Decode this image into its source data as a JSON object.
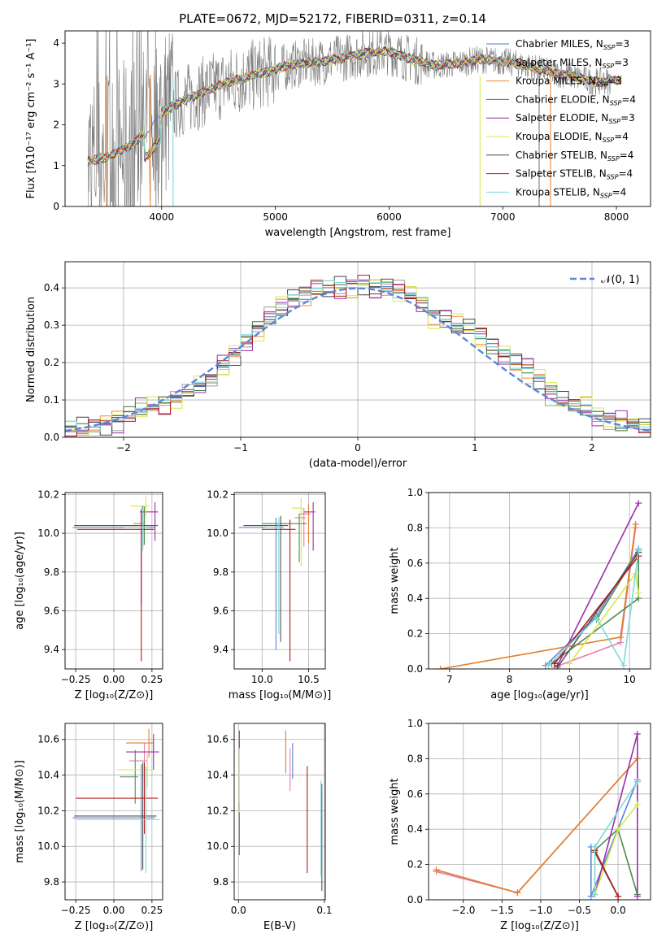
{
  "chart_data": [
    {
      "type": "line",
      "title": "PLATE=0672, MJD=52172, FIBERID=0311, z=0.14",
      "xlabel": "wavelength [Angstrom, rest frame]",
      "ylabel": "Flux [fλ10⁻¹⁷ erg cm⁻² s⁻¹ A⁻¹]",
      "xlim": [
        3150,
        8300
      ],
      "ylim": [
        0,
        4.3
      ],
      "xticks": [
        "4000",
        "5000",
        "6000",
        "7000",
        "8000"
      ],
      "yticks": [
        "0",
        "1",
        "2",
        "3",
        "4"
      ],
      "legend_position": "top-right",
      "continuum_x": [
        3350,
        3500,
        3700,
        3900,
        4000,
        4200,
        4400,
        4600,
        4800,
        5000,
        5200,
        5400,
        5600,
        5800,
        6000,
        6200,
        6400,
        6600,
        6800,
        7000,
        7200,
        7400,
        7600,
        7800,
        8050
      ],
      "continuum_y": [
        1.1,
        1.2,
        1.45,
        1.9,
        2.3,
        2.6,
        2.85,
        3.05,
        3.2,
        3.35,
        3.5,
        3.55,
        3.65,
        3.75,
        3.8,
        3.6,
        3.45,
        3.5,
        3.6,
        3.55,
        3.45,
        3.3,
        3.2,
        3.05,
        3.1
      ],
      "series": [
        {
          "name": "Chabrier MILES, N",
          "sub": "SSP",
          "suffix": "=3",
          "color": "#4a78c4",
          "width": 1
        },
        {
          "name": "Salpeter MILES, N",
          "sub": "SSP",
          "suffix": "=3",
          "color": "#9b9b9b",
          "width": 1
        },
        {
          "name": "Kroupa MILES, N",
          "sub": "SSP",
          "suffix": "=3",
          "color": "#ee8833",
          "width": 1
        },
        {
          "name": "Chabrier ELODIE, N",
          "sub": "SSP",
          "suffix": "=4",
          "color": "#3a7a3a",
          "width": 0.8
        },
        {
          "name": "Salpeter ELODIE, N",
          "sub": "SSP",
          "suffix": "=3",
          "color": "#9a2fa8",
          "width": 1
        },
        {
          "name": "Kroupa ELODIE, N",
          "sub": "SSP",
          "suffix": "=4",
          "color": "#d8e84a",
          "width": 1
        },
        {
          "name": "Chabrier STELIB, N",
          "sub": "SSP",
          "suffix": "=4",
          "color": "#444444",
          "width": 0.8
        },
        {
          "name": "Salpeter STELIB, N",
          "sub": "SSP",
          "suffix": "=4",
          "color": "#b31b1b",
          "width": 1
        },
        {
          "name": "Kroupa STELIB, N",
          "sub": "SSP",
          "suffix": "=4",
          "color": "#7fd8d8",
          "width": 1
        }
      ]
    },
    {
      "type": "histogram",
      "xlabel": "(data-model)/error",
      "ylabel": "Normed distribution",
      "xlim": [
        -2.5,
        2.5
      ],
      "ylim": [
        0,
        0.47
      ],
      "xticks": [
        "−2",
        "−1",
        "0",
        "1",
        "2"
      ],
      "yticks": [
        "0.0",
        "0.1",
        "0.2",
        "0.3",
        "0.4"
      ],
      "bin_edges": [
        -2.5,
        -2.4,
        -2.3,
        -2.2,
        -2.1,
        -2.0,
        -1.9,
        -1.8,
        -1.7,
        -1.6,
        -1.5,
        -1.4,
        -1.3,
        -1.2,
        -1.1,
        -1.0,
        -0.9,
        -0.8,
        -0.7,
        -0.6,
        -0.5,
        -0.4,
        -0.3,
        -0.2,
        -0.1,
        0.0,
        0.1,
        0.2,
        0.3,
        0.4,
        0.5,
        0.6,
        0.7,
        0.8,
        0.9,
        1.0,
        1.1,
        1.2,
        1.3,
        1.4,
        1.5,
        1.6,
        1.7,
        1.8,
        1.9,
        2.0,
        2.1,
        2.2,
        2.3,
        2.4,
        2.5
      ],
      "base_values": [
        0.02,
        0.025,
        0.03,
        0.04,
        0.05,
        0.06,
        0.07,
        0.08,
        0.09,
        0.1,
        0.12,
        0.14,
        0.16,
        0.19,
        0.22,
        0.26,
        0.29,
        0.32,
        0.35,
        0.37,
        0.38,
        0.39,
        0.4,
        0.4,
        0.4,
        0.41,
        0.4,
        0.4,
        0.39,
        0.38,
        0.36,
        0.33,
        0.31,
        0.3,
        0.29,
        0.27,
        0.24,
        0.22,
        0.2,
        0.18,
        0.15,
        0.12,
        0.1,
        0.09,
        0.08,
        0.06,
        0.05,
        0.04,
        0.035,
        0.03
      ],
      "gaussian_label": "𝒩(0, 1)",
      "gaussian_color": "#5b86d6"
    },
    {
      "type": "scatter",
      "panel": "age-vs-Z",
      "xlabel": "Z [log₁₀(Z/Z⊙)]",
      "ylabel": "age  [log₁₀(age/yr)]",
      "xlim": [
        -0.32,
        0.32
      ],
      "ylim": [
        9.3,
        10.21
      ],
      "xticks": [
        "−0.25",
        "0.00",
        "0.25"
      ],
      "yticks": [
        "9.4",
        "9.6",
        "9.8",
        "10.0",
        "10.2"
      ],
      "x": [
        0.18,
        0.18,
        0.19,
        0.2,
        0.27,
        0.21,
        0.19,
        0.18,
        0.19
      ],
      "y": [
        10.03,
        10.03,
        10.05,
        10.04,
        10.11,
        10.14,
        10.04,
        10.02,
        10.03
      ],
      "xerr": [
        0.45,
        0.08,
        0.06,
        0.45,
        0.1,
        0.1,
        0.45,
        0.42,
        0.12
      ],
      "yerr_low": [
        0.4,
        0.06,
        0.12,
        0.1,
        0.15,
        0.06,
        0.1,
        0.68,
        0.12
      ],
      "yerr_high": [
        0.1,
        0.08,
        0.08,
        0.1,
        0.05,
        0.05,
        0.1,
        0.1,
        0.1
      ]
    },
    {
      "type": "scatter",
      "panel": "age-vs-mass",
      "xlabel": "mass [log₁₀(M/M⊙)]",
      "ylabel": "",
      "xlim": [
        9.7,
        10.68
      ],
      "ylim": [
        9.3,
        10.21
      ],
      "xticks": [
        "10.0",
        "10.5"
      ],
      "yticks": [
        "9.4",
        "9.6",
        "9.8",
        "10.0",
        "10.2"
      ],
      "x": [
        10.15,
        10.45,
        10.5,
        10.4,
        10.55,
        10.42,
        10.2,
        10.3,
        10.18
      ],
      "y": [
        10.03,
        10.08,
        10.1,
        10.05,
        10.11,
        10.13,
        10.04,
        10.02,
        10.03
      ],
      "xerr": [
        0.4,
        0.1,
        0.1,
        0.4,
        0.1,
        0.1,
        0.4,
        0.3,
        0.15
      ],
      "yerr_low": [
        0.63,
        0.15,
        0.15,
        0.2,
        0.2,
        0.3,
        0.6,
        0.68,
        0.55
      ],
      "yerr_high": [
        0.05,
        0.05,
        0.05,
        0.05,
        0.05,
        0.05,
        0.05,
        0.05,
        0.05
      ]
    },
    {
      "type": "line",
      "panel": "mass-weight-vs-age",
      "xlabel": "age  [log₁₀(age/yr)]",
      "ylabel": "mass weight",
      "xlim": [
        6.65,
        10.35
      ],
      "ylim": [
        0,
        1
      ],
      "xticks": [
        "7",
        "8",
        "9",
        "10"
      ],
      "yticks": [
        "0.0",
        "0.2",
        "0.4",
        "0.6",
        "0.8",
        "1.0"
      ],
      "series": [
        {
          "x": [
            8.6,
            9.45,
            10.15
          ],
          "y": [
            0.02,
            0.3,
            0.68
          ]
        },
        {
          "x": [
            8.75,
            9.85,
            10.1
          ],
          "y": [
            0.01,
            0.15,
            0.8
          ]
        },
        {
          "x": [
            6.85,
            9.85,
            10.1
          ],
          "y": [
            0.0,
            0.18,
            0.82
          ]
        },
        {
          "x": [
            8.7,
            10.15,
            10.15,
            9.45
          ],
          "y": [
            0.03,
            0.4,
            0.67,
            0.28
          ]
        },
        {
          "x": [
            8.8,
            10.15
          ],
          "y": [
            0.02,
            0.94
          ]
        },
        {
          "x": [
            9.0,
            10.1,
            10.15
          ],
          "y": [
            0.03,
            0.54,
            0.43
          ]
        },
        {
          "x": [
            8.8,
            10.15
          ],
          "y": [
            0.01,
            0.66
          ]
        },
        {
          "x": [
            8.75,
            10.15
          ],
          "y": [
            0.03,
            0.64
          ]
        },
        {
          "x": [
            8.65,
            9.45,
            9.9,
            10.15
          ],
          "y": [
            0.02,
            0.29,
            0.02,
            0.67
          ]
        }
      ]
    },
    {
      "type": "scatter",
      "panel": "mass-vs-Z",
      "xlabel": "Z [log₁₀(Z/Z⊙)]",
      "ylabel": "mass [log₁₀(M/M⊙)]",
      "xlim": [
        -0.32,
        0.32
      ],
      "ylim": [
        9.7,
        10.69
      ],
      "xticks": [
        "−0.25",
        "0.00",
        "0.25"
      ],
      "yticks": [
        "9.8",
        "10.0",
        "10.2",
        "10.4",
        "10.6"
      ],
      "x": [
        0.18,
        0.2,
        0.23,
        0.14,
        0.26,
        0.22,
        0.19,
        0.2,
        0.21
      ],
      "y": [
        10.16,
        10.48,
        10.58,
        10.39,
        10.53,
        10.43,
        10.17,
        10.27,
        10.15
      ],
      "xerr": [
        0.45,
        0.1,
        0.15,
        0.1,
        0.18,
        0.2,
        0.45,
        0.45,
        0.45
      ],
      "yerr": [
        0.3,
        0.1,
        0.08,
        0.15,
        0.1,
        0.1,
        0.3,
        0.2,
        0.3
      ]
    },
    {
      "type": "scatter",
      "panel": "mass-vs-EBV",
      "xlabel": "E(B-V)",
      "ylabel": "",
      "xlim": [
        -0.005,
        0.101
      ],
      "ylim": [
        9.7,
        10.69
      ],
      "xticks": [
        "0.0",
        "0.1"
      ],
      "yticks": [
        "9.8",
        "10.0",
        "10.2",
        "10.4",
        "10.6"
      ],
      "x": [
        0.063,
        0.06,
        0.055,
        0.001,
        0.001,
        0.001,
        0.097,
        0.08,
        0.096
      ],
      "y": [
        10.48,
        10.43,
        10.53,
        10.1,
        10.6,
        10.37,
        10.05,
        10.15,
        10.1
      ],
      "yerr": [
        0.1,
        0.12,
        0.12,
        0.15,
        0.05,
        0.18,
        0.3,
        0.3,
        0.27
      ]
    },
    {
      "type": "line",
      "panel": "mass-weight-vs-Z",
      "xlabel": "Z [log₁₀(Z/Z⊙)]",
      "ylabel": "mass weight",
      "xlim": [
        -2.45,
        0.42
      ],
      "ylim": [
        0,
        1
      ],
      "xticks": [
        "−2.0",
        "−1.5",
        "−1.0",
        "−0.5",
        "0.0"
      ],
      "yticks": [
        "0.0",
        "0.2",
        "0.4",
        "0.6",
        "0.8",
        "1.0"
      ],
      "series": [
        {
          "x": [
            -0.35,
            -0.35,
            0.25,
            0.25
          ],
          "y": [
            0.3,
            0.02,
            0.68,
            0.67
          ]
        },
        {
          "x": [
            -2.35,
            -1.3,
            0.25
          ],
          "y": [
            0.16,
            0.04,
            0.8
          ]
        },
        {
          "x": [
            -2.35,
            -1.3,
            0.25
          ],
          "y": [
            0.17,
            0.04,
            0.8
          ]
        },
        {
          "x": [
            -0.3,
            -0.0,
            0.25
          ],
          "y": [
            0.28,
            0.4,
            0.03
          ]
        },
        {
          "x": [
            -0.3,
            0.25,
            0.25
          ],
          "y": [
            0.03,
            0.94,
            0.02
          ]
        },
        {
          "x": [
            -0.3,
            0.0,
            0.25
          ],
          "y": [
            0.03,
            0.4,
            0.54
          ]
        },
        {
          "x": [
            -0.3,
            0.0
          ],
          "y": [
            0.27,
            0.02
          ]
        },
        {
          "x": [
            -0.3,
            0.0
          ],
          "y": [
            0.28,
            0.02
          ]
        },
        {
          "x": [
            -0.3,
            -0.3,
            0.25
          ],
          "y": [
            0.03,
            0.3,
            0.67
          ]
        }
      ]
    }
  ]
}
